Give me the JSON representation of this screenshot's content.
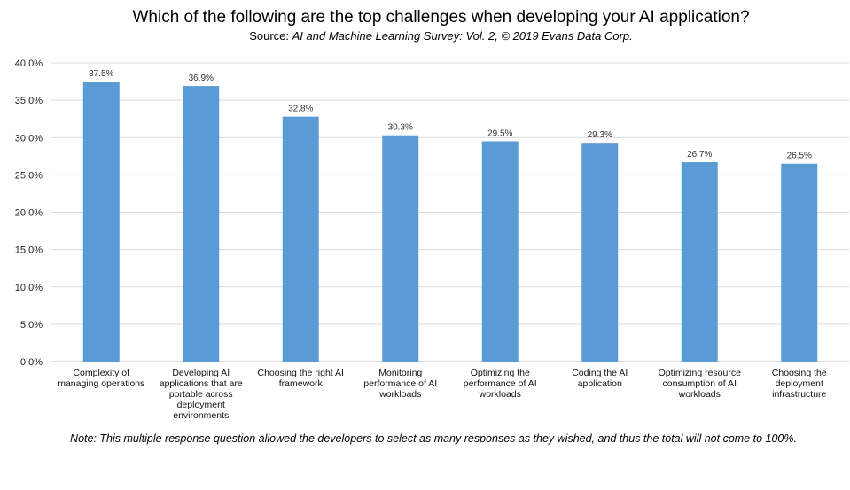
{
  "title": "Which of the following are the top challenges when developing your AI application?",
  "subtitle_prefix": "Source: ",
  "subtitle_source": "AI and Machine Learning Survey: Vol. 2, © 2019 Evans Data Corp.",
  "note": "Note: This multiple response question allowed the developers to select as many responses as they wished, and thus the total will not come to 100%.",
  "colors": {
    "bar": "#5B9BD5",
    "grid": "#D9D9D9",
    "axis": "#BFBFBF"
  },
  "chart_data": {
    "type": "bar",
    "title": "Which of the following are the top challenges when developing your AI application?",
    "categories": [
      "Complexity of managing operations",
      "Developing AI applications that are portable across deployment environments",
      "Choosing the right AI framework",
      "Monitoring performance of AI workloads",
      "Optimizing the performance of AI workloads",
      "Coding the AI application",
      "Optimizing resource consumption of AI workloads",
      "Choosing the deployment infrastructure"
    ],
    "values": [
      37.5,
      36.9,
      32.8,
      30.3,
      29.5,
      29.3,
      26.7,
      26.5
    ],
    "data_labels": [
      "37.5%",
      "36.9%",
      "32.8%",
      "30.3%",
      "29.5%",
      "29.3%",
      "26.7%",
      "26.5%"
    ],
    "ylim": [
      0,
      40
    ],
    "yticks": [
      "0.0%",
      "5.0%",
      "10.0%",
      "15.0%",
      "20.0%",
      "25.0%",
      "30.0%",
      "35.0%",
      "40.0%"
    ],
    "grid": true,
    "legend": "none"
  }
}
